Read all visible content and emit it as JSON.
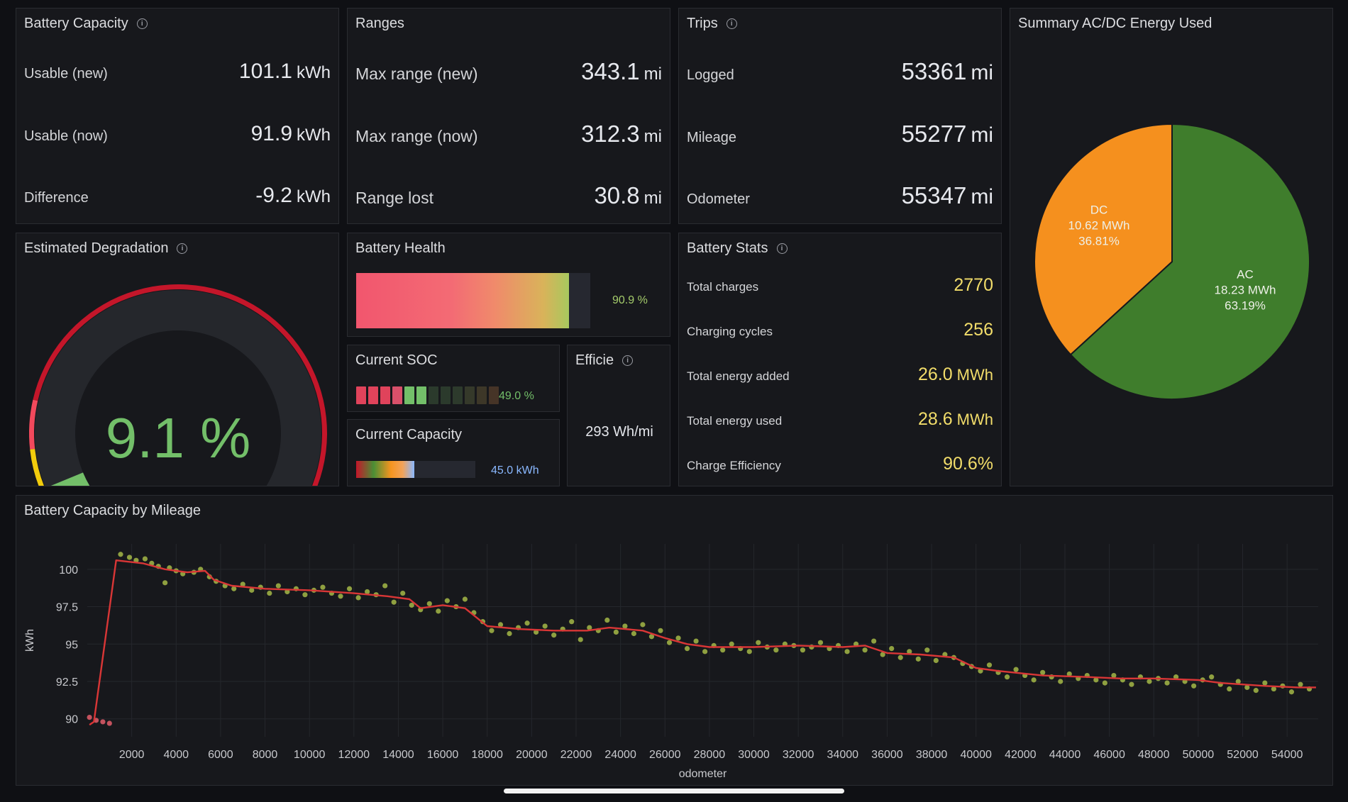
{
  "battery_capacity": {
    "title": "Battery Capacity",
    "rows": [
      {
        "label": "Usable (new)",
        "value": "101.1",
        "unit": "kWh"
      },
      {
        "label": "Usable (now)",
        "value": "91.9",
        "unit": "kWh"
      },
      {
        "label": "Difference",
        "value": "-9.2",
        "unit": "kWh"
      }
    ]
  },
  "ranges": {
    "title": "Ranges",
    "rows": [
      {
        "label": "Max range (new)",
        "value": "343.1",
        "unit": "mi"
      },
      {
        "label": "Max range (now)",
        "value": "312.3",
        "unit": "mi"
      },
      {
        "label": "Range lost",
        "value": "30.8",
        "unit": "mi"
      }
    ]
  },
  "trips": {
    "title": "Trips",
    "rows": [
      {
        "label": "Logged",
        "value": "53361",
        "unit": "mi"
      },
      {
        "label": "Mileage",
        "value": "55277",
        "unit": "mi"
      },
      {
        "label": "Odometer",
        "value": "55347",
        "unit": "mi"
      }
    ]
  },
  "energy_summary": {
    "title": "Summary AC/DC Energy Used",
    "slices": [
      {
        "label": "DC",
        "energy": "10.62 MWh",
        "percent_text": "36.81%",
        "percent": 36.81,
        "color": "#f5901e"
      },
      {
        "label": "AC",
        "energy": "18.23 MWh",
        "percent_text": "63.19%",
        "percent": 63.19,
        "color": "#3f7d2c"
      }
    ]
  },
  "degradation": {
    "title": "Estimated Degradation",
    "value_text": "9.1 %",
    "percent": 9.1,
    "value_color": "#73bf69"
  },
  "battery_health": {
    "title": "Battery Health",
    "value_text": "90.9 %",
    "percent": 90.9
  },
  "current_soc": {
    "title": "Current SOC",
    "value_text": "49.0 %",
    "percent": 49.0
  },
  "current_capacity": {
    "title": "Current Capacity",
    "value_text": "45.0 kWh",
    "fraction": 0.49
  },
  "efficiency": {
    "title": "Efficie",
    "value_text": "293 Wh/mi"
  },
  "battery_stats": {
    "title": "Battery Stats",
    "rows": [
      {
        "label": "Total charges",
        "value": "2770",
        "unit": ""
      },
      {
        "label": "Charging cycles",
        "value": "256",
        "unit": ""
      },
      {
        "label": "Total energy added",
        "value": "26.0",
        "unit": "MWh"
      },
      {
        "label": "Total energy used",
        "value": "28.6",
        "unit": "MWh"
      },
      {
        "label": "Charge Efficiency",
        "value": "90.6%",
        "unit": ""
      }
    ]
  },
  "mileage_chart": {
    "title": "Battery Capacity by Mileage"
  },
  "chart_data": {
    "type": "scatter",
    "title": "Battery Capacity by Mileage",
    "xlabel": "odometer",
    "ylabel": "kWh",
    "xlim": [
      0,
      55400
    ],
    "ylim": [
      88.8,
      101.7
    ],
    "x_ticks": [
      2000,
      4000,
      6000,
      8000,
      10000,
      12000,
      14000,
      16000,
      18000,
      20000,
      22000,
      24000,
      26000,
      28000,
      30000,
      32000,
      34000,
      36000,
      38000,
      40000,
      42000,
      44000,
      46000,
      48000,
      50000,
      52000,
      54000
    ],
    "y_ticks": [
      90,
      92.5,
      95,
      97.5,
      100
    ],
    "y_tick_labels": [
      "90",
      "92.5",
      "95",
      "97.5",
      "100"
    ],
    "grid": true,
    "series": [
      {
        "kind": "line",
        "color": "#d93636",
        "points": [
          [
            100,
            89.6
          ],
          [
            300,
            89.8
          ],
          [
            1300,
            100.6
          ],
          [
            2500,
            100.4
          ],
          [
            3500,
            100.0
          ],
          [
            4500,
            99.8
          ],
          [
            5300,
            99.9
          ],
          [
            5700,
            99.3
          ],
          [
            6500,
            98.9
          ],
          [
            8000,
            98.7
          ],
          [
            10000,
            98.6
          ],
          [
            12000,
            98.4
          ],
          [
            13500,
            98.2
          ],
          [
            14500,
            98.0
          ],
          [
            15000,
            97.4
          ],
          [
            16000,
            97.6
          ],
          [
            17000,
            97.4
          ],
          [
            18000,
            96.2
          ],
          [
            19500,
            96.0
          ],
          [
            21000,
            95.9
          ],
          [
            22500,
            95.9
          ],
          [
            23500,
            96.1
          ],
          [
            25000,
            95.9
          ],
          [
            26000,
            95.4
          ],
          [
            27000,
            95.0
          ],
          [
            28000,
            94.8
          ],
          [
            30000,
            94.8
          ],
          [
            32000,
            94.9
          ],
          [
            34000,
            94.8
          ],
          [
            35000,
            94.9
          ],
          [
            36000,
            94.4
          ],
          [
            37500,
            94.3
          ],
          [
            39000,
            94.1
          ],
          [
            40000,
            93.4
          ],
          [
            41000,
            93.2
          ],
          [
            43000,
            92.9
          ],
          [
            45000,
            92.8
          ],
          [
            46500,
            92.7
          ],
          [
            48000,
            92.7
          ],
          [
            50000,
            92.6
          ],
          [
            51000,
            92.4
          ],
          [
            53000,
            92.2
          ],
          [
            54500,
            92.1
          ],
          [
            55300,
            92.1
          ]
        ]
      },
      {
        "kind": "points",
        "color": "#a5b846",
        "points": [
          [
            100,
            90.1
          ],
          [
            400,
            89.9
          ],
          [
            700,
            89.8
          ],
          [
            1000,
            89.7
          ],
          [
            1500,
            101.0
          ],
          [
            1900,
            100.8
          ],
          [
            2200,
            100.6
          ],
          [
            2600,
            100.7
          ],
          [
            2900,
            100.4
          ],
          [
            3200,
            100.2
          ],
          [
            3500,
            99.1
          ],
          [
            3700,
            100.1
          ],
          [
            4000,
            99.9
          ],
          [
            4300,
            99.7
          ],
          [
            4800,
            99.8
          ],
          [
            5100,
            100.0
          ],
          [
            5500,
            99.5
          ],
          [
            5800,
            99.2
          ],
          [
            6200,
            98.9
          ],
          [
            6600,
            98.7
          ],
          [
            7000,
            99.0
          ],
          [
            7400,
            98.6
          ],
          [
            7800,
            98.8
          ],
          [
            8200,
            98.4
          ],
          [
            8600,
            98.9
          ],
          [
            9000,
            98.5
          ],
          [
            9400,
            98.7
          ],
          [
            9800,
            98.3
          ],
          [
            10200,
            98.6
          ],
          [
            10600,
            98.8
          ],
          [
            11000,
            98.4
          ],
          [
            11400,
            98.2
          ],
          [
            11800,
            98.7
          ],
          [
            12200,
            98.1
          ],
          [
            12600,
            98.5
          ],
          [
            13000,
            98.3
          ],
          [
            13400,
            98.9
          ],
          [
            13800,
            97.8
          ],
          [
            14200,
            98.4
          ],
          [
            14600,
            97.6
          ],
          [
            15000,
            97.3
          ],
          [
            15400,
            97.7
          ],
          [
            15800,
            97.2
          ],
          [
            16200,
            97.9
          ],
          [
            16600,
            97.5
          ],
          [
            17000,
            98.0
          ],
          [
            17400,
            97.1
          ],
          [
            17800,
            96.5
          ],
          [
            18200,
            95.9
          ],
          [
            18600,
            96.3
          ],
          [
            19000,
            95.7
          ],
          [
            19400,
            96.1
          ],
          [
            19800,
            96.4
          ],
          [
            20200,
            95.8
          ],
          [
            20600,
            96.2
          ],
          [
            21000,
            95.6
          ],
          [
            21400,
            96.0
          ],
          [
            21800,
            96.5
          ],
          [
            22200,
            95.3
          ],
          [
            22600,
            96.1
          ],
          [
            23000,
            95.9
          ],
          [
            23400,
            96.6
          ],
          [
            23800,
            95.8
          ],
          [
            24200,
            96.2
          ],
          [
            24600,
            95.7
          ],
          [
            25000,
            96.3
          ],
          [
            25400,
            95.5
          ],
          [
            25800,
            95.9
          ],
          [
            26200,
            95.1
          ],
          [
            26600,
            95.4
          ],
          [
            27000,
            94.7
          ],
          [
            27400,
            95.2
          ],
          [
            27800,
            94.5
          ],
          [
            28200,
            94.9
          ],
          [
            28600,
            94.6
          ],
          [
            29000,
            95.0
          ],
          [
            29400,
            94.7
          ],
          [
            29800,
            94.5
          ],
          [
            30200,
            95.1
          ],
          [
            30600,
            94.8
          ],
          [
            31000,
            94.6
          ],
          [
            31400,
            95.0
          ],
          [
            31800,
            94.9
          ],
          [
            32200,
            94.6
          ],
          [
            32600,
            94.8
          ],
          [
            33000,
            95.1
          ],
          [
            33400,
            94.7
          ],
          [
            33800,
            94.9
          ],
          [
            34200,
            94.5
          ],
          [
            34600,
            95.0
          ],
          [
            35000,
            94.6
          ],
          [
            35400,
            95.2
          ],
          [
            35800,
            94.3
          ],
          [
            36200,
            94.7
          ],
          [
            36600,
            94.1
          ],
          [
            37000,
            94.5
          ],
          [
            37400,
            94.0
          ],
          [
            37800,
            94.6
          ],
          [
            38200,
            93.9
          ],
          [
            38600,
            94.3
          ],
          [
            39000,
            94.1
          ],
          [
            39400,
            93.7
          ],
          [
            39800,
            93.5
          ],
          [
            40200,
            93.2
          ],
          [
            40600,
            93.6
          ],
          [
            41000,
            93.1
          ],
          [
            41400,
            92.8
          ],
          [
            41800,
            93.3
          ],
          [
            42200,
            92.9
          ],
          [
            42600,
            92.6
          ],
          [
            43000,
            93.1
          ],
          [
            43400,
            92.8
          ],
          [
            43800,
            92.5
          ],
          [
            44200,
            93.0
          ],
          [
            44600,
            92.7
          ],
          [
            45000,
            92.9
          ],
          [
            45400,
            92.6
          ],
          [
            45800,
            92.4
          ],
          [
            46200,
            92.9
          ],
          [
            46600,
            92.6
          ],
          [
            47000,
            92.3
          ],
          [
            47400,
            92.8
          ],
          [
            47800,
            92.5
          ],
          [
            48200,
            92.7
          ],
          [
            48600,
            92.4
          ],
          [
            49000,
            92.8
          ],
          [
            49400,
            92.5
          ],
          [
            49800,
            92.2
          ],
          [
            50200,
            92.6
          ],
          [
            50600,
            92.8
          ],
          [
            51000,
            92.3
          ],
          [
            51400,
            92.0
          ],
          [
            51800,
            92.5
          ],
          [
            52200,
            92.1
          ],
          [
            52600,
            91.9
          ],
          [
            53000,
            92.4
          ],
          [
            53400,
            92.0
          ],
          [
            53800,
            92.2
          ],
          [
            54200,
            91.8
          ],
          [
            54600,
            92.3
          ],
          [
            55000,
            92.0
          ]
        ]
      }
    ]
  }
}
